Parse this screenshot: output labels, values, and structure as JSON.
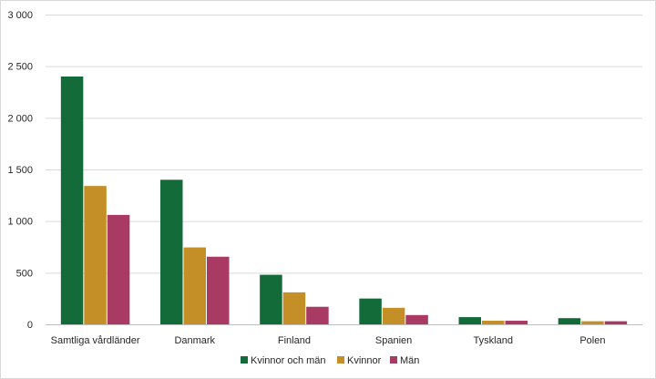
{
  "chart_data": {
    "type": "bar",
    "title": "",
    "xlabel": "",
    "ylabel": "",
    "ylim": [
      0,
      3000
    ],
    "yticks": [
      0,
      500,
      1000,
      1500,
      2000,
      2500,
      3000
    ],
    "ytick_labels": [
      "0",
      "500",
      "1 000",
      "1 500",
      "2 000",
      "2 500",
      "3 000"
    ],
    "grid": true,
    "legend_position": "bottom",
    "categories": [
      "Samtliga vårdländer",
      "Danmark",
      "Finland",
      "Spanien",
      "Tyskland",
      "Polen"
    ],
    "series": [
      {
        "name": "Kvinnor och män",
        "color": "#146b3a",
        "values": [
          2400,
          1400,
          480,
          250,
          70,
          60
        ]
      },
      {
        "name": "Kvinnor",
        "color": "#c38f26",
        "values": [
          1340,
          745,
          310,
          160,
          35,
          30
        ]
      },
      {
        "name": "Män",
        "color": "#a93a64",
        "values": [
          1060,
          655,
          170,
          90,
          35,
          30
        ]
      }
    ]
  }
}
